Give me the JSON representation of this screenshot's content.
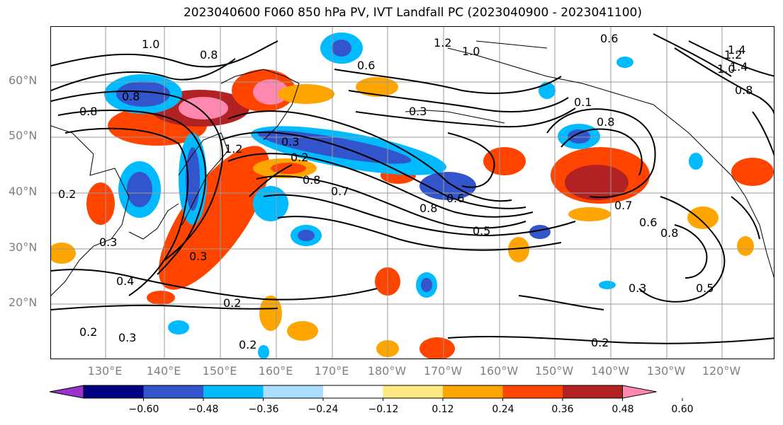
{
  "title": "2023040600 F060 850 hPa PV, IVT Landfall PC (2023040900 - 2023041100)",
  "lat_labels": [
    "60°N",
    "50°N",
    "40°N",
    "30°N",
    "20°N"
  ],
  "lon_labels": [
    "130°E",
    "140°E",
    "150°E",
    "160°E",
    "170°E",
    "180°W",
    "170°W",
    "160°W",
    "150°W",
    "140°W",
    "130°W",
    "120°W"
  ],
  "colorbar": {
    "ticks": [
      "−0.60",
      "−0.48",
      "−0.36",
      "−0.24",
      "−0.12",
      "0.12",
      "0.24",
      "0.36",
      "0.48",
      "0.60"
    ],
    "colors": [
      "#9933cc",
      "#000080",
      "#3355cc",
      "#00bbff",
      "#aaddff",
      "#ffffff",
      "#ffe880",
      "#ffa500",
      "#ff4400",
      "#b22222",
      "#ff88b0"
    ]
  },
  "contour_labels": [
    "1.0",
    "0.8",
    "0.6",
    "1.2",
    "1.4",
    "0.6",
    "1.0",
    "0.8",
    "0.8",
    "0.3",
    "0.8",
    "1.2",
    "0.3",
    "0.2",
    "0.8",
    "0.7",
    "0.6",
    "0.8",
    "0.5",
    "0.3",
    "0.7",
    "0.6",
    "0.8",
    "0.4",
    "0.3",
    "0.2",
    "0.2",
    "0.2",
    "0.3",
    "0.2",
    "0.3",
    "0.5",
    "0.2",
    "1.4",
    "1.2",
    "1.0",
    "0.8",
    "0.1"
  ]
}
